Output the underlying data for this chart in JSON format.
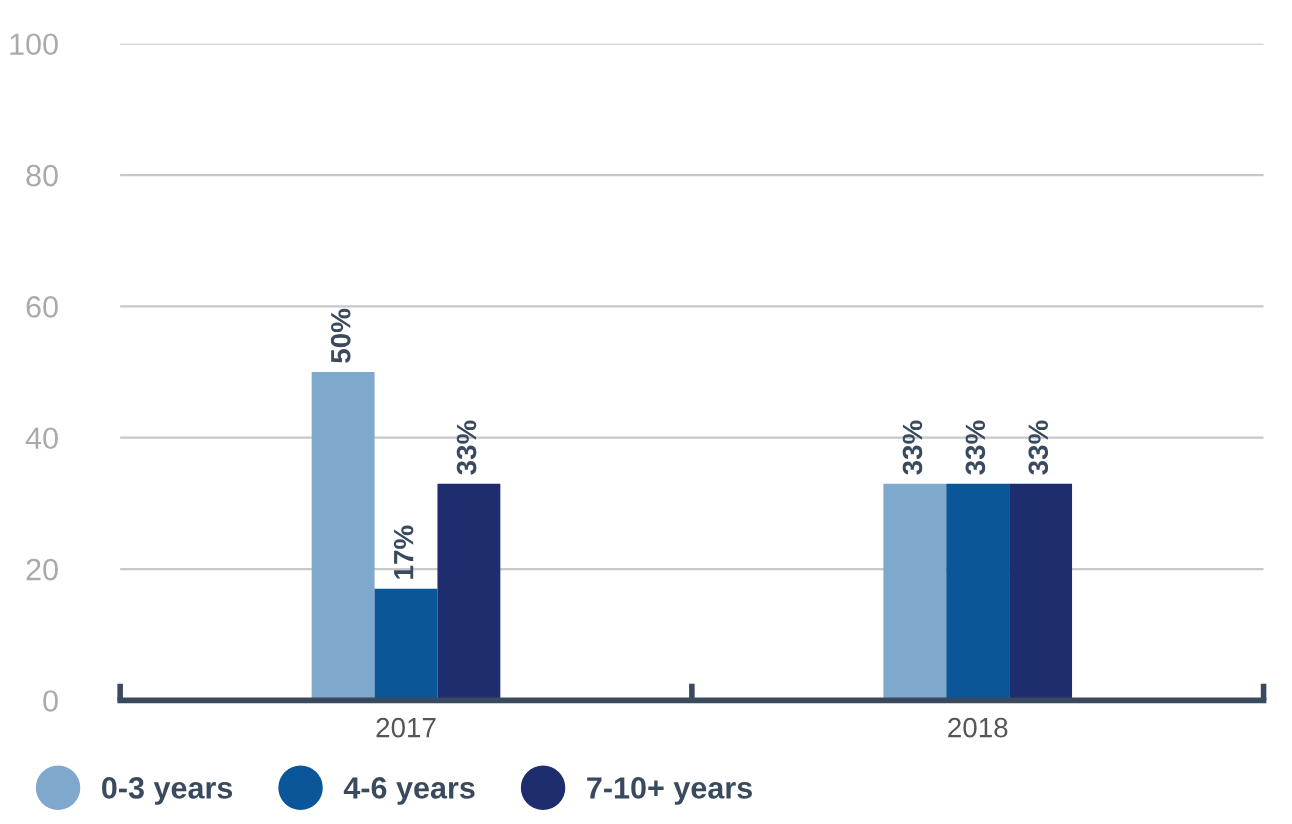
{
  "chart_data": {
    "type": "bar",
    "categories": [
      "2017",
      "2018"
    ],
    "series": [
      {
        "name": "0-3 years",
        "color": "#7fa8cd",
        "values": [
          50,
          33
        ],
        "value_labels": [
          "50%",
          "33%"
        ]
      },
      {
        "name": "4-6 years",
        "color": "#0b5699",
        "values": [
          17,
          33
        ],
        "value_labels": [
          "17%",
          "33%"
        ]
      },
      {
        "name": "7-10+ years",
        "color": "#1e2d6e",
        "values": [
          33,
          33
        ],
        "value_labels": [
          "33%",
          "33%"
        ]
      }
    ],
    "ylim": [
      0,
      100
    ],
    "yticks": [
      0,
      20,
      40,
      60,
      80,
      100
    ],
    "grid": "y",
    "legend": "bottom left"
  }
}
